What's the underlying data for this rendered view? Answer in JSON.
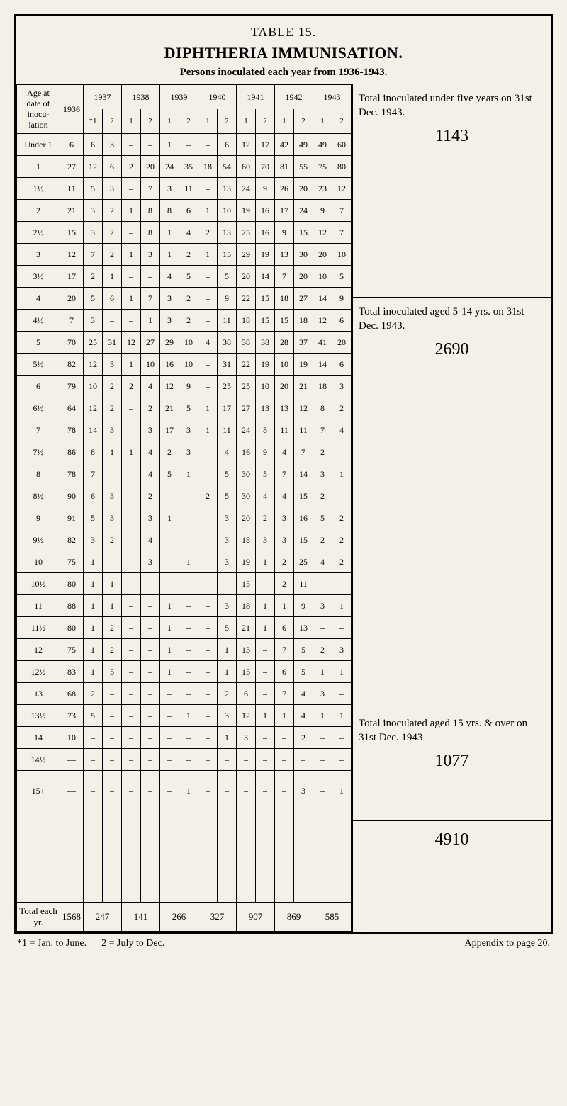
{
  "title": {
    "table_num": "TABLE 15.",
    "main": "DIPHTHERIA IMMUNISATION.",
    "sub": "Persons inoculated each year from 1936-1943."
  },
  "headers": {
    "age": "Age at date of inocu-lation",
    "years": [
      "1936",
      "1937",
      "1938",
      "1939",
      "1940",
      "1941",
      "1942",
      "1943"
    ],
    "sub37": [
      "*1",
      "2"
    ],
    "sub": [
      "1",
      "2"
    ]
  },
  "rows": [
    {
      "age": "Under 1",
      "c": [
        "6",
        "6",
        "3",
        "–",
        "–",
        "1",
        "–",
        "–",
        "6",
        "12",
        "17",
        "42",
        "49",
        "49",
        "60"
      ]
    },
    {
      "age": "1",
      "c": [
        "27",
        "12",
        "6",
        "2",
        "20",
        "24",
        "35",
        "18",
        "54",
        "60",
        "70",
        "81",
        "55",
        "75",
        "80"
      ]
    },
    {
      "age": "1½",
      "c": [
        "11",
        "5",
        "3",
        "–",
        "7",
        "3",
        "11",
        "–",
        "13",
        "24",
        "9",
        "26",
        "20",
        "23",
        "12"
      ]
    },
    {
      "age": "2",
      "c": [
        "21",
        "3",
        "2",
        "1",
        "8",
        "8",
        "6",
        "1",
        "10",
        "19",
        "16",
        "17",
        "24",
        "9",
        "7"
      ]
    },
    {
      "age": "2½",
      "c": [
        "15",
        "3",
        "2",
        "–",
        "8",
        "1",
        "4",
        "2",
        "13",
        "25",
        "16",
        "9",
        "15",
        "12",
        "7"
      ]
    },
    {
      "age": "3",
      "c": [
        "12",
        "7",
        "2",
        "1",
        "3",
        "1",
        "2",
        "1",
        "15",
        "29",
        "19",
        "13",
        "30",
        "20",
        "10"
      ]
    },
    {
      "age": "3½",
      "c": [
        "17",
        "2",
        "1",
        "–",
        "–",
        "4",
        "5",
        "–",
        "5",
        "20",
        "14",
        "7",
        "20",
        "10",
        "5"
      ]
    },
    {
      "age": "4",
      "c": [
        "20",
        "5",
        "6",
        "1",
        "7",
        "3",
        "2",
        "–",
        "9",
        "22",
        "15",
        "18",
        "27",
        "14",
        "9"
      ]
    },
    {
      "age": "4½",
      "c": [
        "7",
        "3",
        "–",
        "–",
        "1",
        "3",
        "2",
        "–",
        "11",
        "18",
        "15",
        "15",
        "18",
        "12",
        "6"
      ]
    },
    {
      "age": "5",
      "c": [
        "70",
        "25",
        "31",
        "12",
        "27",
        "29",
        "10",
        "4",
        "38",
        "38",
        "38",
        "28",
        "37",
        "41",
        "20"
      ]
    },
    {
      "age": "5½",
      "c": [
        "82",
        "12",
        "3",
        "1",
        "10",
        "16",
        "10",
        "–",
        "31",
        "22",
        "19",
        "10",
        "19",
        "14",
        "6"
      ]
    },
    {
      "age": "6",
      "c": [
        "79",
        "10",
        "2",
        "2",
        "4",
        "12",
        "9",
        "–",
        "25",
        "25",
        "10",
        "20",
        "21",
        "18",
        "3"
      ]
    },
    {
      "age": "6½",
      "c": [
        "64",
        "12",
        "2",
        "–",
        "2",
        "21",
        "5",
        "1",
        "17",
        "27",
        "13",
        "13",
        "12",
        "8",
        "2"
      ]
    },
    {
      "age": "7",
      "c": [
        "78",
        "14",
        "3",
        "–",
        "3",
        "17",
        "3",
        "1",
        "11",
        "24",
        "8",
        "11",
        "11",
        "7",
        "4"
      ]
    },
    {
      "age": "7½",
      "c": [
        "86",
        "8",
        "1",
        "1",
        "4",
        "2",
        "3",
        "–",
        "4",
        "16",
        "9",
        "4",
        "7",
        "2",
        "–"
      ]
    },
    {
      "age": "8",
      "c": [
        "78",
        "7",
        "–",
        "–",
        "4",
        "5",
        "1",
        "–",
        "5",
        "30",
        "5",
        "7",
        "14",
        "3",
        "1"
      ]
    },
    {
      "age": "8½",
      "c": [
        "90",
        "6",
        "3",
        "–",
        "2",
        "–",
        "–",
        "2",
        "5",
        "30",
        "4",
        "4",
        "15",
        "2",
        "–"
      ]
    },
    {
      "age": "9",
      "c": [
        "91",
        "5",
        "3",
        "–",
        "3",
        "1",
        "–",
        "–",
        "3",
        "20",
        "2",
        "3",
        "16",
        "5",
        "2"
      ]
    },
    {
      "age": "9½",
      "c": [
        "82",
        "3",
        "2",
        "–",
        "4",
        "–",
        "–",
        "–",
        "3",
        "18",
        "3",
        "3",
        "15",
        "2",
        "2"
      ]
    },
    {
      "age": "10",
      "c": [
        "75",
        "1",
        "–",
        "–",
        "3",
        "–",
        "1",
        "–",
        "3",
        "19",
        "1",
        "2",
        "25",
        "4",
        "2"
      ]
    },
    {
      "age": "10½",
      "c": [
        "80",
        "1",
        "1",
        "–",
        "–",
        "–",
        "–",
        "–",
        "–",
        "15",
        "–",
        "2",
        "11",
        "–",
        "–"
      ]
    },
    {
      "age": "11",
      "c": [
        "88",
        "1",
        "1",
        "–",
        "–",
        "1",
        "–",
        "–",
        "3",
        "18",
        "1",
        "1",
        "9",
        "3",
        "1"
      ]
    },
    {
      "age": "11½",
      "c": [
        "80",
        "1",
        "2",
        "–",
        "–",
        "1",
        "–",
        "–",
        "5",
        "21",
        "1",
        "6",
        "13",
        "–",
        "–"
      ]
    },
    {
      "age": "12",
      "c": [
        "75",
        "1",
        "2",
        "–",
        "–",
        "1",
        "–",
        "–",
        "1",
        "13",
        "–",
        "7",
        "5",
        "2",
        "3"
      ]
    },
    {
      "age": "12½",
      "c": [
        "83",
        "1",
        "5",
        "–",
        "–",
        "1",
        "–",
        "–",
        "1",
        "15",
        "–",
        "6",
        "5",
        "1",
        "1"
      ]
    },
    {
      "age": "13",
      "c": [
        "68",
        "2",
        "–",
        "–",
        "–",
        "–",
        "–",
        "–",
        "2",
        "6",
        "–",
        "7",
        "4",
        "3",
        "–"
      ]
    },
    {
      "age": "13½",
      "c": [
        "73",
        "5",
        "–",
        "–",
        "–",
        "–",
        "1",
        "–",
        "3",
        "12",
        "1",
        "1",
        "4",
        "1",
        "1"
      ]
    },
    {
      "age": "14",
      "c": [
        "10",
        "–",
        "–",
        "–",
        "–",
        "–",
        "–",
        "–",
        "1",
        "3",
        "–",
        "–",
        "2",
        "–",
        "–"
      ]
    },
    {
      "age": "14½",
      "c": [
        "—",
        "–",
        "–",
        "–",
        "–",
        "–",
        "–",
        "–",
        "–",
        "–",
        "–",
        "–",
        "–",
        "–",
        "–"
      ]
    },
    {
      "age": "15+",
      "c": [
        "—",
        "–",
        "–",
        "–",
        "–",
        "–",
        "1",
        "–",
        "–",
        "–",
        "–",
        "–",
        "3",
        "–",
        "1"
      ]
    }
  ],
  "totals": {
    "label": "Total each yr.",
    "vals": [
      "1568",
      "247",
      "141",
      "266",
      "327",
      "907",
      "869",
      "585"
    ]
  },
  "side": {
    "box1": {
      "text": "Total inoculated under five years on 31st Dec. 1943.",
      "num": "1143"
    },
    "box2": {
      "text": "Total inoculated aged 5-14 yrs. on 31st Dec. 1943.",
      "num": "2690"
    },
    "box3": {
      "text": "Total inoculated aged 15 yrs. & over on 31st Dec. 1943",
      "num": "1077"
    },
    "grand": "4910"
  },
  "footnote": {
    "left1": "*1 = Jan. to June.",
    "left2": "2 = July to Dec.",
    "right": "Appendix to page 20."
  }
}
